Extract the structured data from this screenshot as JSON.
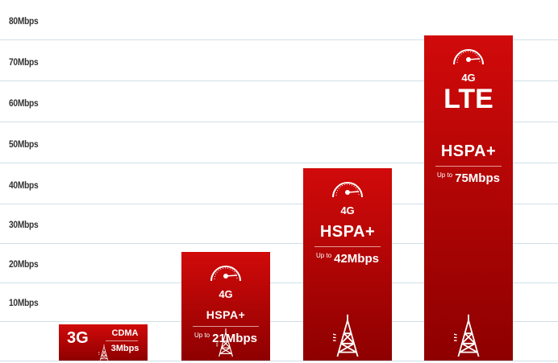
{
  "chart_data": {
    "type": "bar",
    "title": "",
    "xlabel": "",
    "ylabel": "",
    "ylim": [
      0,
      80
    ],
    "grid": true,
    "yticks": [
      "80Mbps",
      "70Mbps",
      "60Mbps",
      "50Mbps",
      "40Mbps",
      "30Mbps",
      "20Mbps",
      "10Mbps"
    ],
    "bars": [
      {
        "generation": "3G",
        "technology": "CDMA",
        "up_to": "",
        "speed_label": "3Mbps",
        "value": 3
      },
      {
        "generation": "4G",
        "technology": "HSPA+",
        "up_to": "Up to",
        "speed_label": "21Mbps",
        "value": 21
      },
      {
        "generation": "4G",
        "technology": "HSPA+",
        "up_to": "Up to",
        "speed_label": "42Mbps",
        "value": 42
      },
      {
        "generation": "4G",
        "headline": "LTE",
        "technology": "HSPA+",
        "up_to": "Up to",
        "speed_label": "75Mbps",
        "value": 75
      }
    ],
    "colors": {
      "bar_top": "#d10a0a",
      "bar_bottom": "#8e0000",
      "grid": "#cfe0e8"
    }
  }
}
